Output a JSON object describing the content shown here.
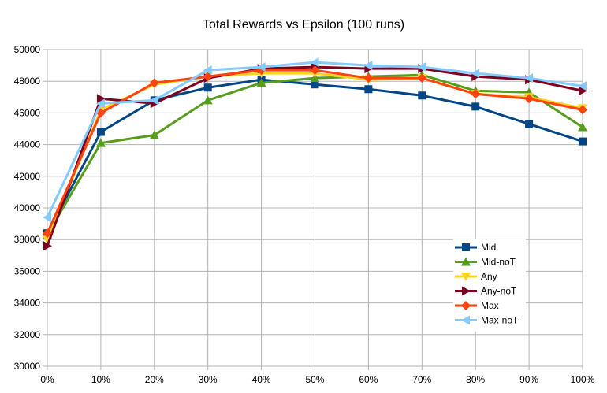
{
  "chart_data": {
    "type": "line",
    "title": "Total Rewards vs Epsilon (100 runs)",
    "xlabel": "",
    "ylabel": "",
    "categories": [
      "0%",
      "10%",
      "20%",
      "30%",
      "40%",
      "50%",
      "60%",
      "70%",
      "80%",
      "90%",
      "100%"
    ],
    "ylim": [
      30000,
      50000
    ],
    "ytick_step": 2000,
    "yticks": [
      "30000",
      "32000",
      "34000",
      "36000",
      "38000",
      "40000",
      "42000",
      "44000",
      "46000",
      "48000",
      "50000"
    ],
    "grid": true,
    "legend_position": "right",
    "series": [
      {
        "name": "Mid",
        "color": "#004586",
        "marker": "square",
        "values": [
          38400,
          44800,
          46800,
          47600,
          48100,
          47800,
          47500,
          47100,
          46400,
          45300,
          44200
        ]
      },
      {
        "name": "Mid-noT",
        "color": "#579d1c",
        "marker": "triangle-up",
        "values": [
          38300,
          44100,
          44600,
          46800,
          47900,
          48200,
          48300,
          48400,
          47400,
          47300,
          45100
        ]
      },
      {
        "name": "Any",
        "color": "#ffd320",
        "marker": "triangle-down",
        "values": [
          38000,
          46200,
          47800,
          48300,
          48500,
          48500,
          48100,
          48200,
          47200,
          47000,
          46300
        ]
      },
      {
        "name": "Any-noT",
        "color": "#7e0021",
        "marker": "triangle-right",
        "values": [
          37600,
          46900,
          46600,
          48200,
          48800,
          48900,
          48800,
          48800,
          48300,
          48100,
          47400
        ]
      },
      {
        "name": "Max",
        "color": "#ff420e",
        "marker": "diamond",
        "values": [
          38400,
          46000,
          47900,
          48300,
          48700,
          48700,
          48200,
          48200,
          47200,
          46900,
          46200
        ]
      },
      {
        "name": "Max-noT",
        "color": "#83caff",
        "marker": "triangle-left",
        "values": [
          39400,
          46600,
          46800,
          48700,
          48900,
          49200,
          49000,
          48900,
          48500,
          48200,
          47700
        ]
      }
    ]
  }
}
